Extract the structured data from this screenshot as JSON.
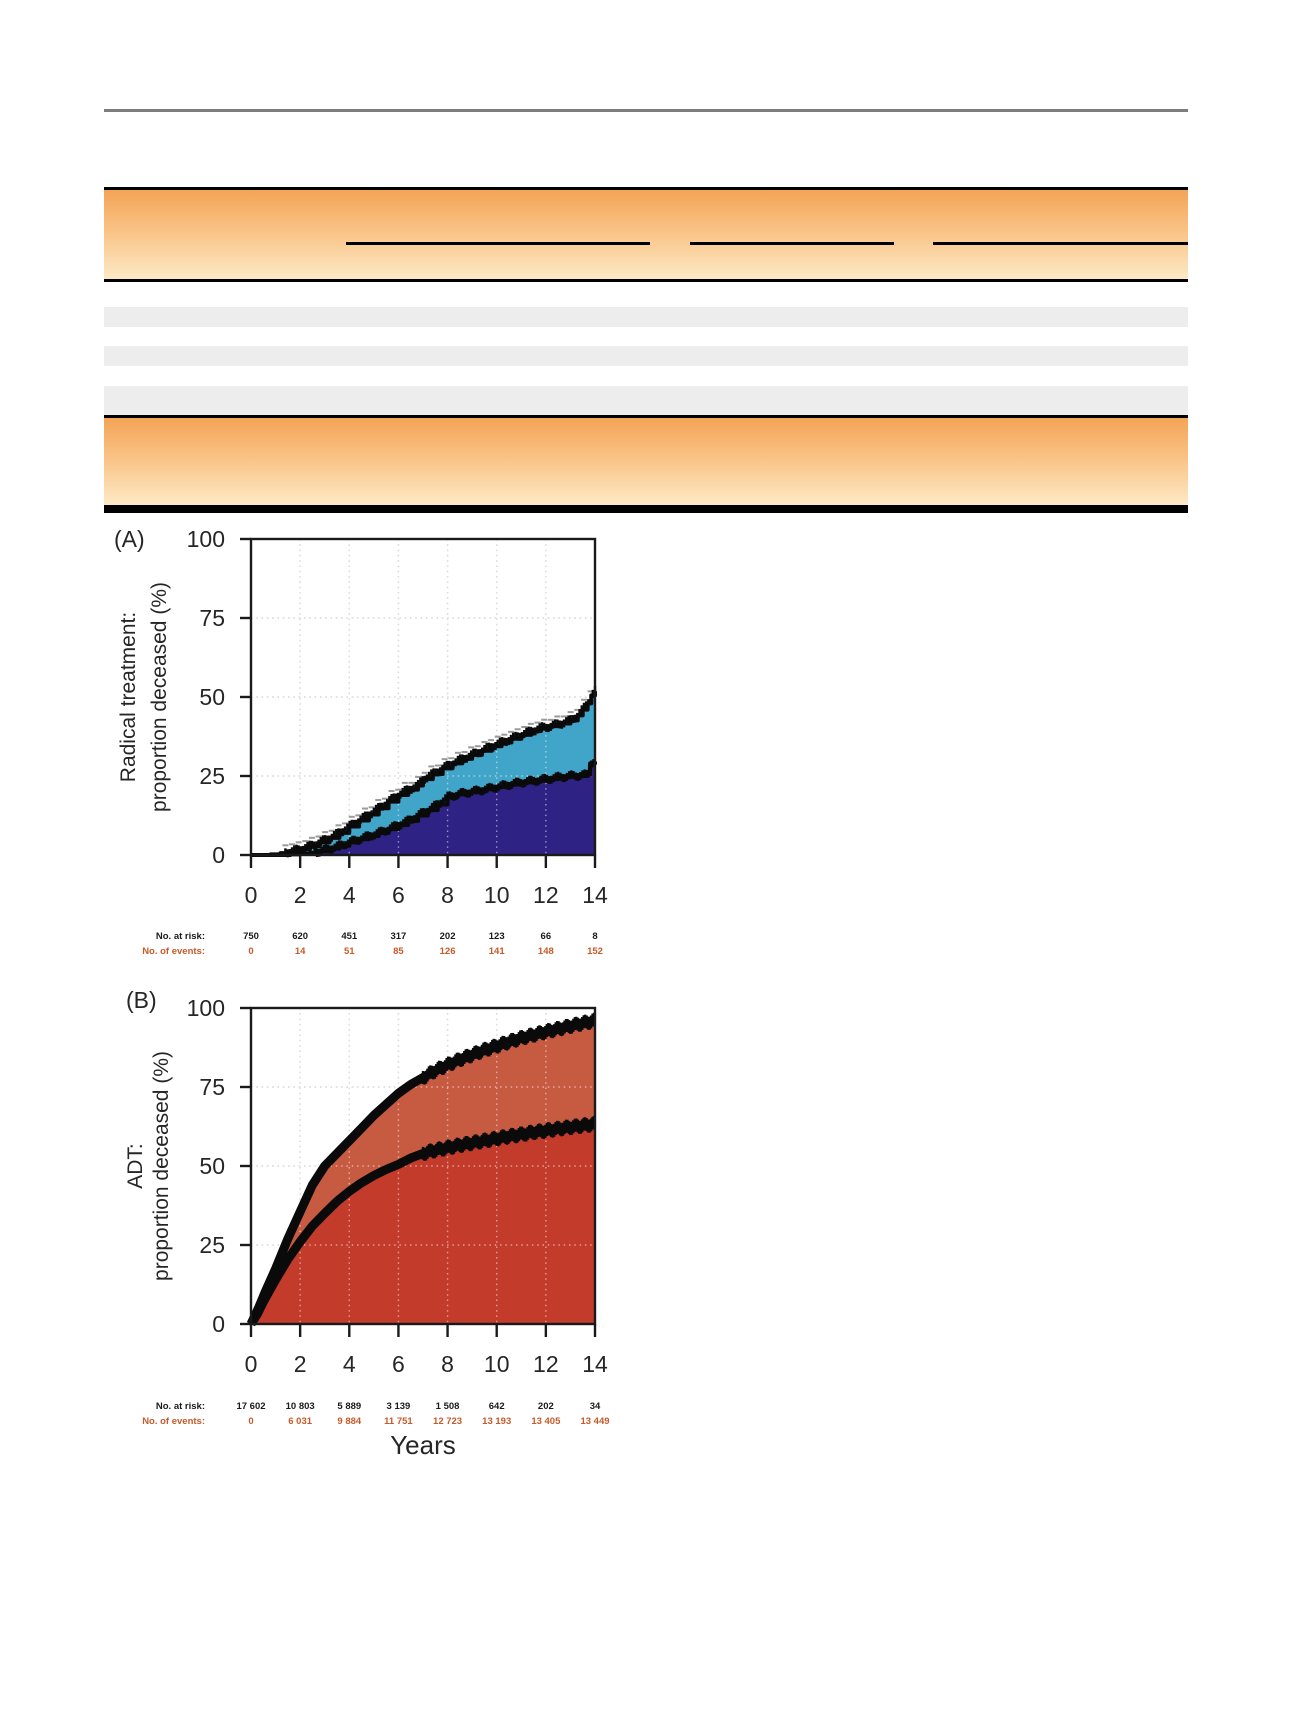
{
  "colors": {
    "header_band_top": "#f3a456",
    "header_band_bottom": "#fde9c6",
    "table_stripe": "#ededed",
    "rule_gray": "#7d7d7d",
    "axis_ink": "#1a1a1a",
    "events_text": "#c75a2a",
    "chart_a_lower_area": "#2e2285",
    "chart_a_upper_area": "#41a4c9",
    "chart_b_lower_area": "#c23b2b",
    "chart_b_upper_area": "#c65b42",
    "gridline": "#b9b9b9"
  },
  "chart_data": [
    {
      "type": "area",
      "panel_label": "(A)",
      "ylabel_lines": [
        "Radical treatment:",
        "proportion deceased (%)"
      ],
      "xlabel": "",
      "x_ticks": [
        "0",
        "2",
        "4",
        "6",
        "8",
        "10",
        "12",
        "14"
      ],
      "y_ticks": [
        "0",
        "25",
        "50",
        "75",
        "100"
      ],
      "xlim": [
        0,
        14
      ],
      "ylim": [
        0,
        100
      ],
      "grid": "dotted",
      "legend": "none",
      "series": [
        {
          "name": "cumulative deaths upper boundary",
          "style": "step",
          "color": "#41a4c9",
          "points": [
            [
              0,
              0
            ],
            [
              0.8,
              0.2
            ],
            [
              1.2,
              0.6
            ],
            [
              1.6,
              1.1
            ],
            [
              2,
              1.8
            ],
            [
              2.4,
              2.8
            ],
            [
              2.8,
              4
            ],
            [
              3.2,
              5.4
            ],
            [
              3.6,
              7
            ],
            [
              4,
              9
            ],
            [
              4.4,
              10.9
            ],
            [
              4.8,
              12.8
            ],
            [
              5.2,
              14.8
            ],
            [
              5.6,
              16.9
            ],
            [
              6,
              19
            ],
            [
              6.4,
              20.7
            ],
            [
              6.8,
              22
            ],
            [
              7,
              24
            ],
            [
              7.4,
              25.6
            ],
            [
              7.8,
              27.4
            ],
            [
              8.2,
              29
            ],
            [
              8.6,
              30.4
            ],
            [
              9,
              31.7
            ],
            [
              9.4,
              33
            ],
            [
              9.8,
              34.4
            ],
            [
              10.2,
              35.6
            ],
            [
              10.6,
              36.8
            ],
            [
              11,
              38
            ],
            [
              11.4,
              39.2
            ],
            [
              11.8,
              40.2
            ],
            [
              12.2,
              40.8
            ],
            [
              12.6,
              41.6
            ],
            [
              13,
              42.6
            ],
            [
              13.3,
              44.2
            ],
            [
              13.5,
              46
            ],
            [
              13.7,
              48
            ],
            [
              13.85,
              50.5
            ],
            [
              14,
              51.8
            ]
          ]
        },
        {
          "name": "cumulative deaths lower boundary",
          "style": "step",
          "color": "#2e2285",
          "points": [
            [
              0,
              0
            ],
            [
              1.2,
              0
            ],
            [
              1.6,
              0.2
            ],
            [
              2,
              0.4
            ],
            [
              2.4,
              0.7
            ],
            [
              2.8,
              1.2
            ],
            [
              3.2,
              2
            ],
            [
              3.6,
              2.9
            ],
            [
              4,
              4
            ],
            [
              4.4,
              5
            ],
            [
              4.8,
              6
            ],
            [
              5.2,
              7
            ],
            [
              5.6,
              8.2
            ],
            [
              6,
              9.5
            ],
            [
              6.4,
              10.8
            ],
            [
              6.8,
              12.5
            ],
            [
              7.2,
              14.2
            ],
            [
              7.6,
              16
            ],
            [
              8,
              18.3
            ],
            [
              8.4,
              19.2
            ],
            [
              8.8,
              19.8
            ],
            [
              9.2,
              20.3
            ],
            [
              9.6,
              20.9
            ],
            [
              10,
              21.5
            ],
            [
              10.5,
              22.3
            ],
            [
              11,
              23
            ],
            [
              11.5,
              23.5
            ],
            [
              12,
              24
            ],
            [
              12.5,
              24.6
            ],
            [
              13,
              25
            ],
            [
              13.7,
              25.4
            ],
            [
              13.8,
              29
            ],
            [
              14,
              29.6
            ]
          ]
        }
      ],
      "at_risk_row": {
        "label": "No. at risk:",
        "values": [
          "750",
          "620",
          "451",
          "317",
          "202",
          "123",
          "66",
          "8"
        ]
      },
      "events_row": {
        "label": "No. of events:",
        "values": [
          "0",
          "14",
          "51",
          "85",
          "126",
          "141",
          "148",
          "152"
        ]
      }
    },
    {
      "type": "area",
      "panel_label": "(B)",
      "ylabel_lines": [
        "ADT:",
        "proportion deceased (%)"
      ],
      "xlabel": "Years",
      "x_ticks": [
        "0",
        "2",
        "4",
        "6",
        "8",
        "10",
        "12",
        "14"
      ],
      "y_ticks": [
        "0",
        "25",
        "50",
        "75",
        "100"
      ],
      "xlim": [
        0,
        14
      ],
      "ylim": [
        0,
        100
      ],
      "grid": "dotted",
      "legend": "none",
      "series": [
        {
          "name": "cumulative deaths upper boundary",
          "style": "smooth",
          "color": "#c65b42",
          "points": [
            [
              0,
              0
            ],
            [
              0.3,
              5
            ],
            [
              0.6,
              10.5
            ],
            [
              1,
              17.5
            ],
            [
              1.5,
              27
            ],
            [
              2,
              35.5
            ],
            [
              2.5,
              44
            ],
            [
              3,
              50
            ],
            [
              3.5,
              54
            ],
            [
              4,
              58
            ],
            [
              4.5,
              62
            ],
            [
              5,
              66
            ],
            [
              5.5,
              69.5
            ],
            [
              6,
              73
            ],
            [
              6.5,
              75.8
            ],
            [
              7,
              78
            ],
            [
              7.5,
              80.2
            ],
            [
              8,
              82
            ],
            [
              8.5,
              83.7
            ],
            [
              9,
              85.2
            ],
            [
              9.5,
              86.7
            ],
            [
              10,
              88
            ],
            [
              10.5,
              89.3
            ],
            [
              11,
              90.5
            ],
            [
              11.5,
              91.5
            ],
            [
              12,
              92.5
            ],
            [
              12.5,
              93.4
            ],
            [
              13,
              94.3
            ],
            [
              13.5,
              95.2
            ],
            [
              14,
              96
            ]
          ]
        },
        {
          "name": "cumulative deaths lower boundary",
          "style": "smooth",
          "color": "#c23b2b",
          "points": [
            [
              0,
              0
            ],
            [
              0.25,
              3
            ],
            [
              0.5,
              7
            ],
            [
              0.75,
              10.5
            ],
            [
              1,
              14
            ],
            [
              1.5,
              20.5
            ],
            [
              2,
              26
            ],
            [
              2.5,
              31
            ],
            [
              3,
              35
            ],
            [
              3.5,
              38.8
            ],
            [
              4,
              42
            ],
            [
              4.5,
              44.7
            ],
            [
              5,
              47
            ],
            [
              5.5,
              48.9
            ],
            [
              6,
              50.5
            ],
            [
              6.5,
              52.5
            ],
            [
              7,
              54
            ],
            [
              7.5,
              55
            ],
            [
              8,
              55.8
            ],
            [
              8.5,
              56.6
            ],
            [
              9,
              57.3
            ],
            [
              9.5,
              58
            ],
            [
              10,
              58.7
            ],
            [
              10.5,
              59.4
            ],
            [
              11,
              60
            ],
            [
              11.5,
              60.7
            ],
            [
              12,
              61.2
            ],
            [
              12.5,
              61.8
            ],
            [
              13,
              62.3
            ],
            [
              13.5,
              62.8
            ],
            [
              14,
              63.3
            ]
          ]
        }
      ],
      "at_risk_row": {
        "label": "No. at risk:",
        "values": [
          "17 602",
          "10 803",
          "5 889",
          "3 139",
          "1 508",
          "642",
          "202",
          "34"
        ]
      },
      "events_row": {
        "label": "No. of events:",
        "values": [
          "0",
          "6 031",
          "9 884",
          "11 751",
          "12 723",
          "13 193",
          "13 405",
          "13 449"
        ]
      }
    }
  ]
}
